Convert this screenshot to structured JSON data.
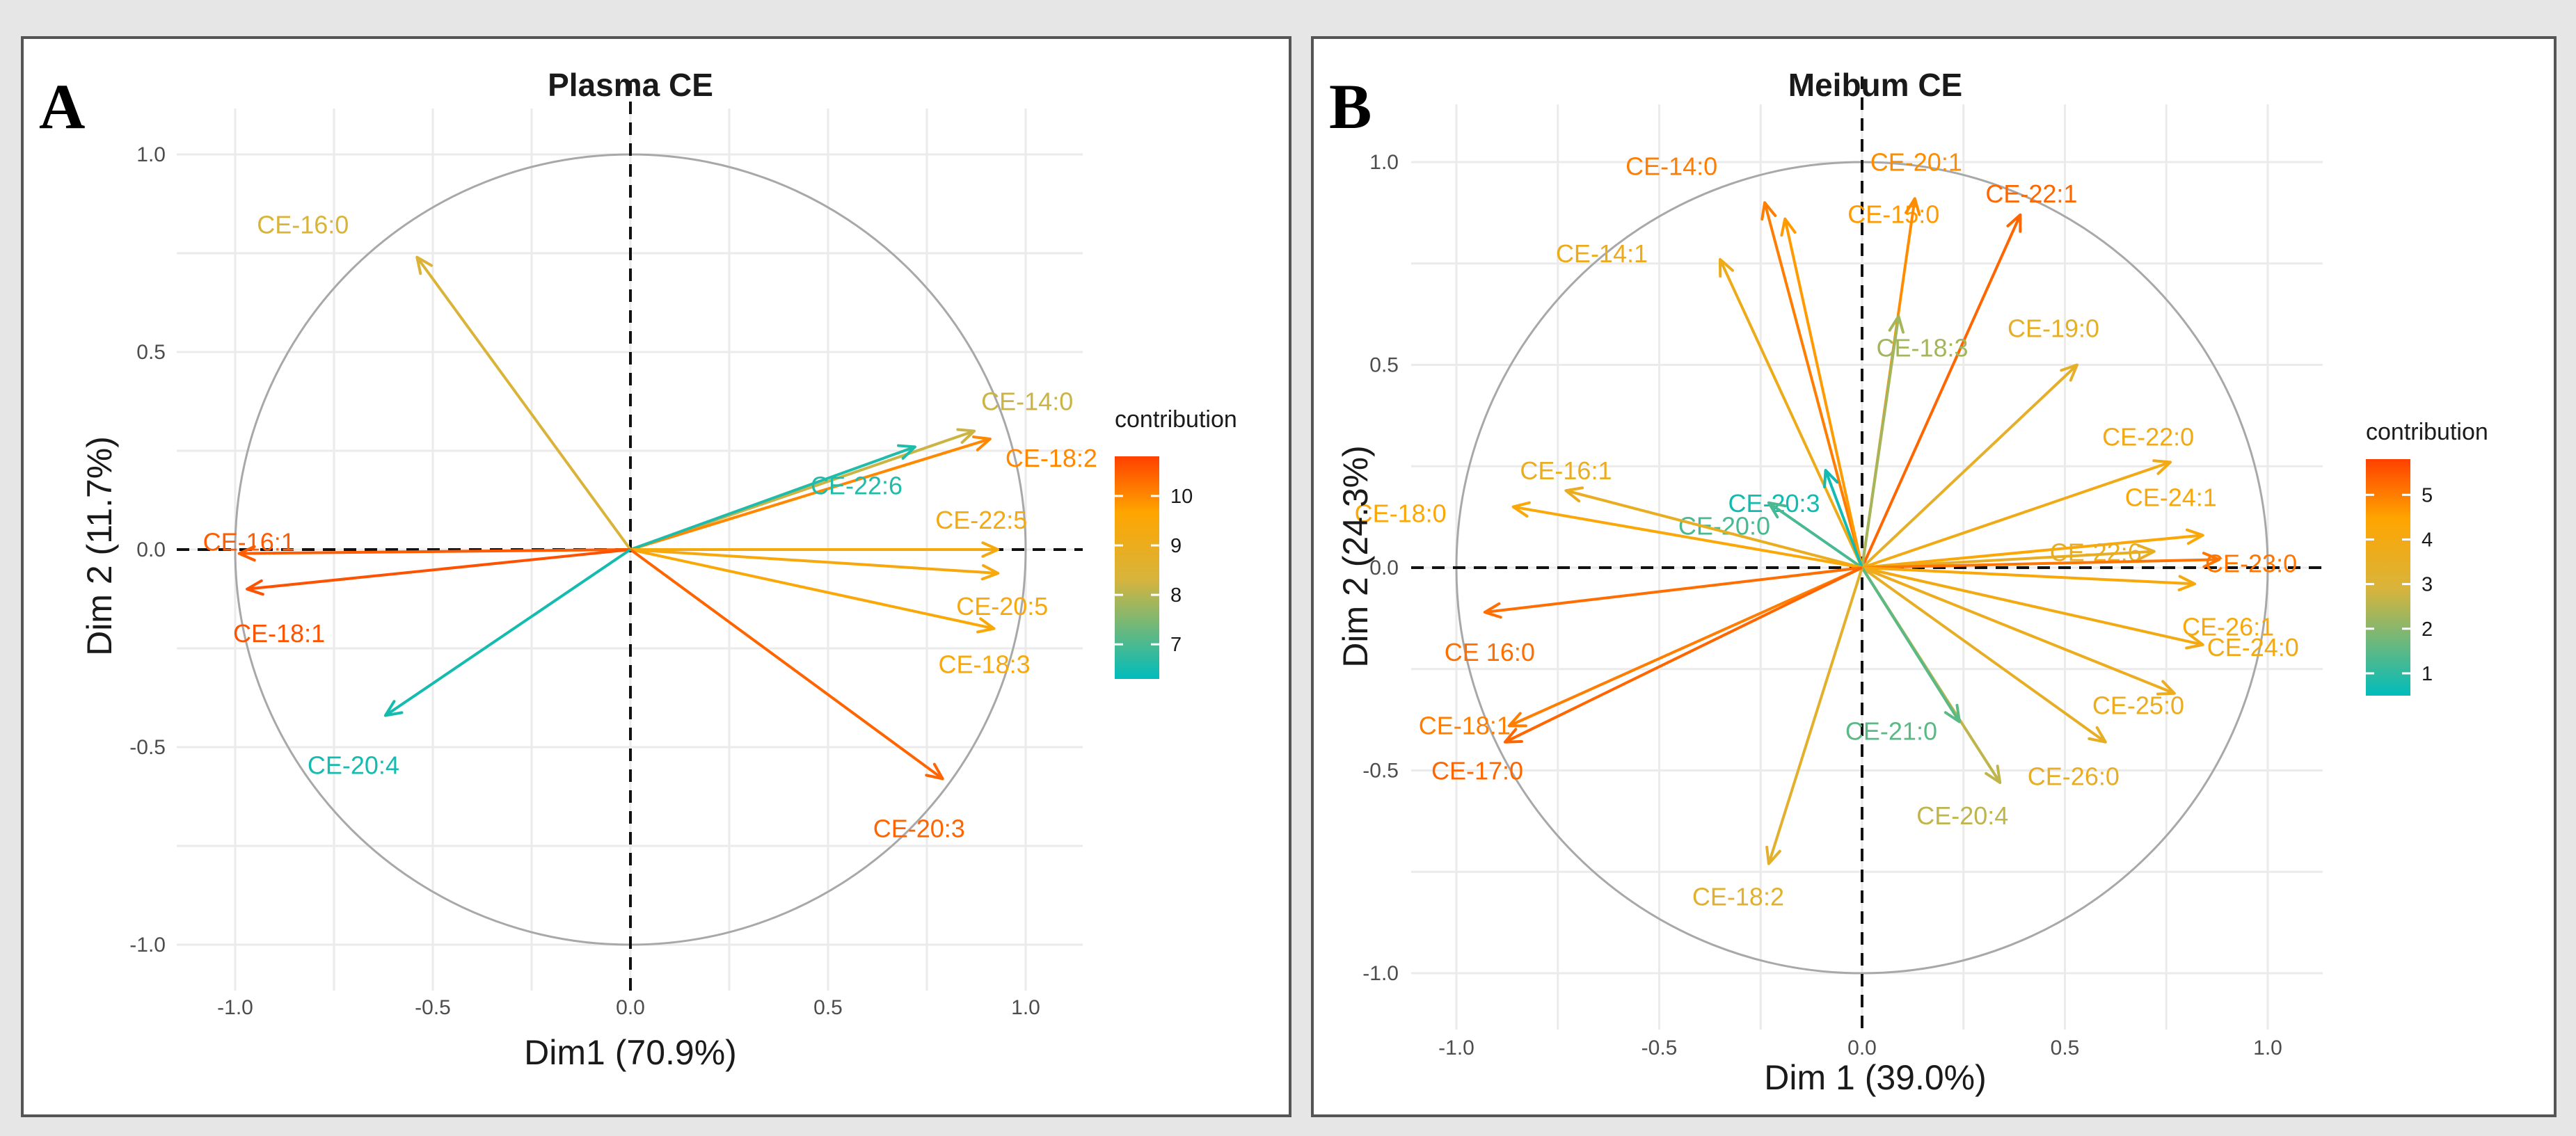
{
  "chart_data": [
    {
      "type": "scatter",
      "panel_label": "A",
      "title": "Plasma CE",
      "xlabel": "Dim1 (70.9%)",
      "ylabel": "Dim 2 (11.7%)",
      "xlim": [
        -1.1,
        1.1
      ],
      "ylim": [
        -1.1,
        1.1
      ],
      "x_ticks": [
        "-1.0",
        "-0.5",
        "0.0",
        "0.5",
        "1.0"
      ],
      "y_ticks": [
        "-1.0",
        "-0.5",
        "0.0",
        "0.5",
        "1.0"
      ],
      "legend": {
        "title": "contribution",
        "ticks": [
          "7",
          "8",
          "9",
          "10"
        ],
        "min": 6.3,
        "max": 10.8,
        "placement": "right"
      },
      "variables": [
        {
          "name": "CE-16:0",
          "x": -0.54,
          "y": 0.74,
          "contribution": 8.4
        },
        {
          "name": "CE-14:0",
          "x": 0.87,
          "y": 0.3,
          "contribution": 8.2
        },
        {
          "name": "CE-18:2",
          "x": 0.91,
          "y": 0.28,
          "contribution": 10.0
        },
        {
          "name": "CE-22:6",
          "x": 0.72,
          "y": 0.26,
          "contribution": 6.6
        },
        {
          "name": "CE-22:5",
          "x": 0.93,
          "y": 0.0,
          "contribution": 9.3
        },
        {
          "name": "CE-20:5",
          "x": 0.93,
          "y": -0.06,
          "contribution": 9.4
        },
        {
          "name": "CE-18:3",
          "x": 0.92,
          "y": -0.2,
          "contribution": 9.5
        },
        {
          "name": "CE-20:3",
          "x": 0.79,
          "y": -0.58,
          "contribution": 10.4
        },
        {
          "name": "CE-16:1",
          "x": -0.99,
          "y": -0.01,
          "contribution": 10.5
        },
        {
          "name": "CE-18:1",
          "x": -0.97,
          "y": -0.1,
          "contribution": 10.6
        },
        {
          "name": "CE-20:4",
          "x": -0.62,
          "y": -0.42,
          "contribution": 6.5
        }
      ]
    },
    {
      "type": "scatter",
      "panel_label": "B",
      "title": "Meibum CE",
      "xlabel": "Dim 1 (39.0%)",
      "ylabel": "Dim 2 (24.3%)",
      "xlim": [
        -1.1,
        1.1
      ],
      "ylim": [
        -1.1,
        1.1
      ],
      "x_ticks": [
        "-1.0",
        "-0.5",
        "0.0",
        "0.5",
        "1.0"
      ],
      "y_ticks": [
        "-1.0",
        "-0.5",
        "0.0",
        "0.5",
        "1.0"
      ],
      "legend": {
        "title": "contribution",
        "ticks": [
          "1",
          "2",
          "3",
          "4",
          "5"
        ],
        "min": 0.5,
        "max": 5.8,
        "placement": "right"
      },
      "variables": [
        {
          "name": "CE-14:0",
          "x": -0.24,
          "y": 0.9,
          "contribution": 5.0
        },
        {
          "name": "CE-15:0",
          "x": -0.19,
          "y": 0.86,
          "contribution": 4.6
        },
        {
          "name": "CE-20:1",
          "x": 0.13,
          "y": 0.91,
          "contribution": 4.8
        },
        {
          "name": "CE-22:1",
          "x": 0.39,
          "y": 0.87,
          "contribution": 5.3
        },
        {
          "name": "CE-14:1",
          "x": -0.35,
          "y": 0.76,
          "contribution": 3.8
        },
        {
          "name": "CE-18:3",
          "x": 0.09,
          "y": 0.62,
          "contribution": 2.3
        },
        {
          "name": "CE-19:0",
          "x": 0.53,
          "y": 0.5,
          "contribution": 3.4
        },
        {
          "name": "CE-20:3",
          "x": -0.09,
          "y": 0.24,
          "contribution": 0.7
        },
        {
          "name": "CE-20:0",
          "x": -0.23,
          "y": 0.16,
          "contribution": 1.3
        },
        {
          "name": "CE-16:1",
          "x": -0.73,
          "y": 0.19,
          "contribution": 3.6
        },
        {
          "name": "CE-18:0",
          "x": -0.86,
          "y": 0.15,
          "contribution": 4.3
        },
        {
          "name": "CE-22:0",
          "x": 0.76,
          "y": 0.26,
          "contribution": 3.9
        },
        {
          "name": "CE-24:1",
          "x": 0.84,
          "y": 0.08,
          "contribution": 4.3
        },
        {
          "name": "CE-22:6",
          "x": 0.72,
          "y": 0.04,
          "contribution": 3.5
        },
        {
          "name": "CE-23:0",
          "x": 0.88,
          "y": 0.02,
          "contribution": 5.1
        },
        {
          "name": "CE-26:1",
          "x": 0.82,
          "y": -0.04,
          "contribution": 4.2
        },
        {
          "name": "CE-24:0",
          "x": 0.84,
          "y": -0.19,
          "contribution": 4.0
        },
        {
          "name": "CE-25:0",
          "x": 0.77,
          "y": -0.31,
          "contribution": 3.7
        },
        {
          "name": "CE-26:0",
          "x": 0.6,
          "y": -0.43,
          "contribution": 3.5
        },
        {
          "name": "CE-20:4",
          "x": 0.34,
          "y": -0.53,
          "contribution": 2.6
        },
        {
          "name": "CE-21:0",
          "x": 0.24,
          "y": -0.38,
          "contribution": 1.5
        },
        {
          "name": "CE-18:2",
          "x": -0.23,
          "y": -0.73,
          "contribution": 3.3
        },
        {
          "name": "CE 16:0",
          "x": -0.93,
          "y": -0.11,
          "contribution": 5.2
        },
        {
          "name": "CE-18:1",
          "x": -0.87,
          "y": -0.39,
          "contribution": 5.0
        },
        {
          "name": "CE-17:0",
          "x": -0.88,
          "y": -0.43,
          "contribution": 5.3
        }
      ]
    }
  ]
}
